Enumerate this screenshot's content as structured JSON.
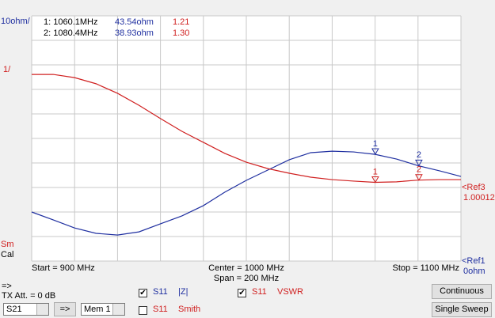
{
  "scale": {
    "blue": "10ohm/",
    "red": "1/",
    "ref3": "<Ref3",
    "ref3_value": "1.00012",
    "ref1": "<Ref1",
    "ref1_value": "0ohm",
    "sm": "Sm",
    "cal": "Cal"
  },
  "axis": {
    "start": "Start = 900 MHz",
    "center": "Center = 1000 MHz",
    "span": "Span = 200 MHz",
    "stop": "Stop = 1100 MHz"
  },
  "chart_data": {
    "type": "line",
    "xlim": [
      900,
      1100
    ],
    "ylim": [
      0,
      100
    ],
    "y2lim": [
      -1.99988,
      8.00012
    ],
    "x": [
      900,
      910,
      920,
      930,
      940,
      950,
      960,
      970,
      980,
      990,
      1000,
      1010,
      1020,
      1030,
      1040,
      1050,
      1060,
      1070,
      1080,
      1090,
      1100
    ],
    "series": [
      {
        "name": "|Z|",
        "color": "#1f2fa0",
        "values": [
          20.0,
          16.8,
          13.5,
          11.3,
          10.6,
          11.9,
          15.2,
          18.4,
          22.6,
          28.1,
          32.9,
          37.1,
          41.3,
          44.2,
          44.8,
          44.5,
          43.5,
          41.6,
          38.9,
          36.8,
          34.5
        ]
      },
      {
        "name": "VSWR",
        "color": "#d02020",
        "axis": "y2",
        "values": [
          5.61,
          5.61,
          5.48,
          5.23,
          4.84,
          4.35,
          3.81,
          3.29,
          2.84,
          2.39,
          2.03,
          1.77,
          1.58,
          1.42,
          1.32,
          1.26,
          1.21,
          1.23,
          1.3,
          1.32,
          1.32
        ]
      }
    ]
  },
  "markers": {
    "ids": [
      "1",
      "2"
    ],
    "freq": [
      1060.1,
      1080.4
    ],
    "freq_labels": [
      "1: 1060.1MHz",
      "2: 1080.4MHz"
    ],
    "z": [
      43.54,
      38.93
    ],
    "z_labels": [
      "43.54ohm",
      "38.93ohm"
    ],
    "vswr": [
      1.21,
      1.3
    ],
    "vswr_labels": [
      "1.21",
      "1.30"
    ]
  },
  "controls": {
    "arrow": "=>",
    "tx_att": "TX Att. = 0 dB",
    "port": "S21",
    "button_arrow": "=>",
    "memory": "Mem 1",
    "checks": [
      {
        "param": "S11",
        "label": "|Z|",
        "checked": true
      },
      {
        "param": "S11",
        "label": "Smith",
        "checked": false
      },
      {
        "param": "S11",
        "label": "VSWR",
        "checked": true
      }
    ],
    "continuous": "Continuous",
    "single": "Single Sweep"
  }
}
